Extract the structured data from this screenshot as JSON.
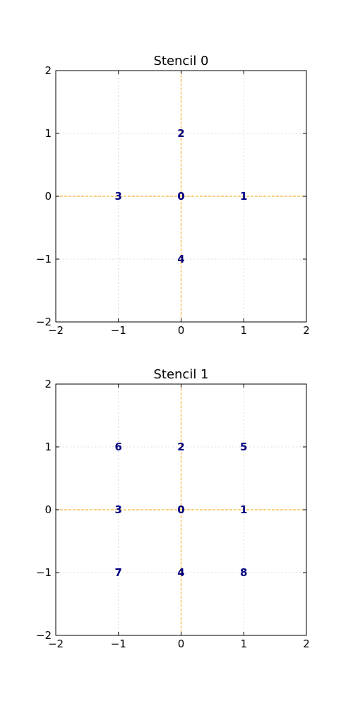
{
  "chart_data": [
    {
      "type": "scatter",
      "title": "Stencil 0",
      "xlim": [
        -2,
        2
      ],
      "ylim": [
        -2,
        2
      ],
      "xticks": [
        -2,
        -1,
        0,
        1,
        2
      ],
      "yticks": [
        -2,
        -1,
        0,
        1,
        2
      ],
      "xtick_labels": [
        "−2",
        "−1",
        "0",
        "1",
        "2"
      ],
      "ytick_labels": [
        "−2",
        "−1",
        "0",
        "1",
        "2"
      ],
      "grid": true,
      "points": [
        {
          "label": "0",
          "x": 0,
          "y": 0
        },
        {
          "label": "1",
          "x": 1,
          "y": 0
        },
        {
          "label": "2",
          "x": 0,
          "y": 1
        },
        {
          "label": "3",
          "x": -1,
          "y": 0
        },
        {
          "label": "4",
          "x": 0,
          "y": -1
        }
      ]
    },
    {
      "type": "scatter",
      "title": "Stencil 1",
      "xlim": [
        -2,
        2
      ],
      "ylim": [
        -2,
        2
      ],
      "xticks": [
        -2,
        -1,
        0,
        1,
        2
      ],
      "yticks": [
        -2,
        -1,
        0,
        1,
        2
      ],
      "xtick_labels": [
        "−2",
        "−1",
        "0",
        "1",
        "2"
      ],
      "ytick_labels": [
        "−2",
        "−1",
        "0",
        "1",
        "2"
      ],
      "grid": true,
      "points": [
        {
          "label": "0",
          "x": 0,
          "y": 0
        },
        {
          "label": "1",
          "x": 1,
          "y": 0
        },
        {
          "label": "2",
          "x": 0,
          "y": 1
        },
        {
          "label": "3",
          "x": -1,
          "y": 0
        },
        {
          "label": "4",
          "x": 0,
          "y": -1
        },
        {
          "label": "5",
          "x": 1,
          "y": 1
        },
        {
          "label": "6",
          "x": -1,
          "y": 1
        },
        {
          "label": "7",
          "x": -1,
          "y": -1
        },
        {
          "label": "8",
          "x": 1,
          "y": -1
        }
      ]
    }
  ],
  "colors": {
    "point_label": "#000080",
    "axis_lines": "#ffb238",
    "grid": "#d0d0d0",
    "frame": "#000000"
  }
}
